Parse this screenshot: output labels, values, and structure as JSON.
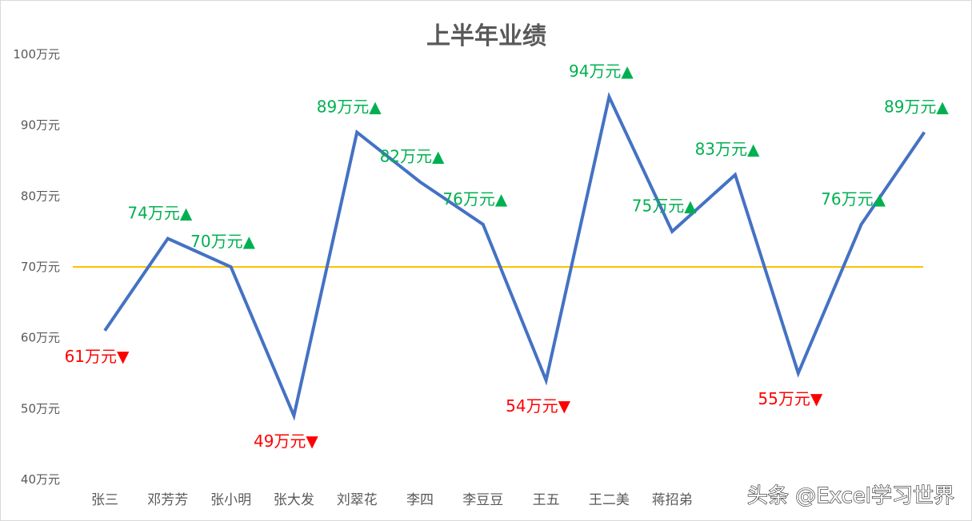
{
  "chart_data": {
    "type": "line",
    "title": "上半年业绩",
    "categories": [
      "张三",
      "邓芳芳",
      "张小明",
      "张大发",
      "刘翠花",
      "李四",
      "李豆豆",
      "王五",
      "王二美",
      "蒋招弟",
      "",
      "",
      "",
      ""
    ],
    "values": [
      61,
      74,
      70,
      49,
      89,
      82,
      76,
      54,
      94,
      75,
      83,
      55,
      76,
      89
    ],
    "data_labels": [
      "61万元▼",
      "74万元▲",
      "70万元▲",
      "49万元▼",
      "89万元▲",
      "82万元▲",
      "76万元▲",
      "54万元▼",
      "94万元▲",
      "75万元▲",
      "83万元▲",
      "55万元▼",
      "76万元▲",
      "89万元▲"
    ],
    "ylim": [
      40,
      100
    ],
    "yticks": [
      40,
      50,
      60,
      70,
      80,
      90,
      100
    ],
    "ytick_labels": [
      "40万元",
      "50万元",
      "60万元",
      "70万元",
      "80万元",
      "90万元",
      "100万元"
    ],
    "reference_line": 70,
    "grid": false,
    "colors": {
      "line": "#4472C4",
      "reference": "#FFC000",
      "up": "#00B050",
      "down": "#FF0000",
      "text": "#595959"
    }
  },
  "watermark": "头条 @Excel学习世界"
}
